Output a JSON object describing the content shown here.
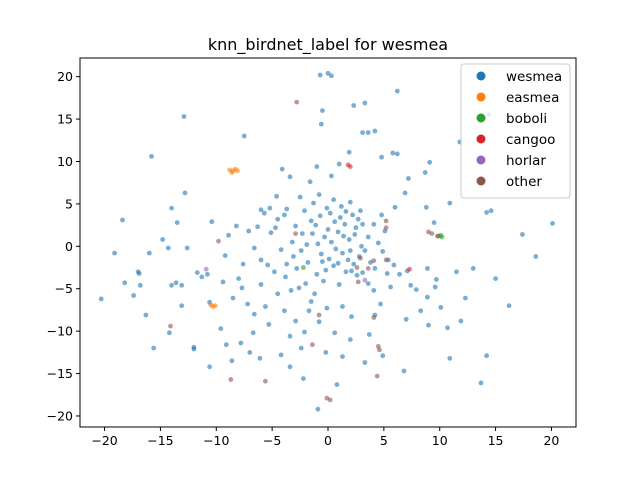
{
  "chart_data": {
    "type": "scatter",
    "title": "knn_birdnet_label for wesmea",
    "xlabel": "",
    "ylabel": "",
    "xlim": [
      -22.2,
      22.2
    ],
    "ylim": [
      -21.3,
      22.2
    ],
    "xticks": [
      -20,
      -15,
      -10,
      -5,
      0,
      5,
      10,
      15,
      20
    ],
    "yticks": [
      -20,
      -15,
      -10,
      -5,
      0,
      5,
      10,
      15,
      20
    ],
    "grid": false,
    "legend": {
      "position": "top-right"
    },
    "colors": {
      "wesmea": "#1f77b4",
      "easmea": "#ff7f0e",
      "boboli": "#2ca02c",
      "cangoo": "#d62728",
      "horlar": "#9467bd",
      "other": "#8c564b"
    },
    "series": [
      {
        "name": "wesmea",
        "points": [
          [
            0,
            20.4
          ],
          [
            -0.7,
            20.2
          ],
          [
            0.3,
            20.1
          ],
          [
            -12.9,
            15.3
          ],
          [
            14.4,
            15.5
          ],
          [
            6.2,
            18.3
          ],
          [
            2.3,
            16.6
          ],
          [
            3.3,
            16.9
          ],
          [
            -0.5,
            16
          ],
          [
            -0.6,
            14.4
          ],
          [
            3.6,
            13.4
          ],
          [
            4.2,
            13.6
          ],
          [
            5.8,
            11
          ],
          [
            4.8,
            10.5
          ],
          [
            -15.8,
            10.6
          ],
          [
            -7.5,
            13
          ],
          [
            -12.8,
            6.3
          ],
          [
            -14,
            4.5
          ],
          [
            -8.2,
            2.4
          ],
          [
            -13.5,
            2.8
          ],
          [
            -14.8,
            0.8
          ],
          [
            -19.1,
            -0.8
          ],
          [
            -18.4,
            3.1
          ],
          [
            -16,
            -0.8
          ],
          [
            -16.9,
            -3.2
          ],
          [
            -16.8,
            -4.6
          ],
          [
            -17.4,
            -5.8
          ],
          [
            -16.3,
            -8.1
          ],
          [
            -15.6,
            -12
          ],
          [
            -14,
            -4.6
          ],
          [
            -13.6,
            -4.3
          ],
          [
            -12,
            -11.9
          ],
          [
            -10.6,
            -14.2
          ],
          [
            -10.8,
            -3.3
          ],
          [
            -20.3,
            -6.2
          ],
          [
            -14.3,
            -0.2
          ],
          [
            -6,
            4.3
          ],
          [
            -5.7,
            3.9
          ],
          [
            -5.2,
            4.5
          ],
          [
            -4.5,
            3.2
          ],
          [
            -4.7,
            2.2
          ],
          [
            -3.9,
            3.7
          ],
          [
            -3.4,
            8.2
          ],
          [
            -2.5,
            5.8
          ],
          [
            -2.1,
            4.2
          ],
          [
            -1.3,
            5.1
          ],
          [
            -0.7,
            3.6
          ],
          [
            0.2,
            3.9
          ],
          [
            0.6,
            2.9
          ],
          [
            1.1,
            3.4
          ],
          [
            1.6,
            4.1
          ],
          [
            2.2,
            3.7
          ],
          [
            2.7,
            3.2
          ],
          [
            3.1,
            2.6
          ],
          [
            0.9,
            1.7
          ],
          [
            1.4,
            1.2
          ],
          [
            1.9,
            0.8
          ],
          [
            2.4,
            1.4
          ],
          [
            0.3,
            0.5
          ],
          [
            -0.3,
            1.1
          ],
          [
            -0.9,
            0.3
          ],
          [
            -1.4,
            1.5
          ],
          [
            -1.9,
            0.2
          ],
          [
            -2.4,
            -0.5
          ],
          [
            -0.6,
            -0.9
          ],
          [
            0.1,
            -1.5
          ],
          [
            0.7,
            -0.3
          ],
          [
            1.3,
            -0.8
          ],
          [
            1.8,
            -1.6
          ],
          [
            2.3,
            -2.1
          ],
          [
            2.8,
            -1.2
          ],
          [
            3.3,
            -0.5
          ],
          [
            3.8,
            -1.9
          ],
          [
            4.2,
            -2.6
          ],
          [
            0.5,
            -2.3
          ],
          [
            -0.2,
            -2.8
          ],
          [
            -1.0,
            -3.3
          ],
          [
            1.6,
            -3.0
          ],
          [
            2.1,
            -2.9
          ],
          [
            2.6,
            -3.4
          ],
          [
            3.1,
            -3.1
          ],
          [
            4.5,
            0.4
          ],
          [
            4.9,
            -0.6
          ],
          [
            5.4,
            -1.6
          ],
          [
            5.9,
            -2.2
          ],
          [
            -3.1,
            -1.2
          ],
          [
            -3.7,
            -2.1
          ],
          [
            -4.2,
            -0.4
          ],
          [
            -4.8,
            -3.0
          ],
          [
            -5.4,
            -2.2
          ],
          [
            -6.0,
            -1.6
          ],
          [
            -6.6,
            -0.2
          ],
          [
            -7.1,
            1.8
          ],
          [
            -7.6,
            -2.1
          ],
          [
            -8.0,
            -3.8
          ],
          [
            -2.0,
            -4.4
          ],
          [
            -2.6,
            -4.9
          ],
          [
            -3.3,
            -5.2
          ],
          [
            -1.2,
            -5.6
          ],
          [
            -1.7,
            -7.6
          ],
          [
            -0.8,
            -8.9
          ],
          [
            -2.1,
            -10.1
          ],
          [
            -3.4,
            -10.6
          ],
          [
            -5.3,
            -9.2
          ],
          [
            -6.6,
            -8.0
          ],
          [
            -7.2,
            -6.8
          ],
          [
            -7.8,
            -11.4
          ],
          [
            -9.6,
            -9.7
          ],
          [
            -8.5,
            -6.1
          ],
          [
            -9.2,
            -1.1
          ],
          [
            -10.4,
            2.9
          ],
          [
            -11.3,
            -3.6
          ],
          [
            -6.1,
            -13.2
          ],
          [
            -3.4,
            -14.2
          ],
          [
            -4.2,
            -12.8
          ],
          [
            -2.2,
            -15.6
          ],
          [
            -0.9,
            -19.2
          ],
          [
            0.8,
            -16.3
          ],
          [
            1.3,
            -13.0
          ],
          [
            2.0,
            -11.0
          ],
          [
            0.6,
            -10.2
          ],
          [
            -0.2,
            -12.5
          ],
          [
            3.7,
            -10.4
          ],
          [
            4.2,
            -8.1
          ],
          [
            4.7,
            -6.8
          ],
          [
            4.1,
            -5.2
          ],
          [
            5.6,
            -4.8
          ],
          [
            6.4,
            -3.3
          ],
          [
            7.1,
            -2.9
          ],
          [
            7.4,
            -4.6
          ],
          [
            7.0,
            -8.6
          ],
          [
            6.8,
            -14.7
          ],
          [
            8.3,
            -7.6
          ],
          [
            8.9,
            -6.0
          ],
          [
            9.6,
            -4.8
          ],
          [
            10.1,
            -7.2
          ],
          [
            10.7,
            -9.6
          ],
          [
            10.9,
            -13.2
          ],
          [
            11.5,
            -3.0
          ],
          [
            12.3,
            -6.1
          ],
          [
            13.0,
            -2.6
          ],
          [
            14.2,
            -12.9
          ],
          [
            13.7,
            -16.1
          ],
          [
            15.0,
            -3.8
          ],
          [
            16.2,
            -7.0
          ],
          [
            18.6,
            -1.2
          ],
          [
            20.1,
            2.7
          ],
          [
            17.4,
            1.4
          ],
          [
            14.6,
            4.2
          ],
          [
            14.2,
            4.0
          ],
          [
            11.8,
            12.3
          ],
          [
            10.9,
            5.1
          ],
          [
            9.1,
            9.9
          ],
          [
            8.7,
            8.7
          ],
          [
            7.2,
            8.0
          ],
          [
            6.9,
            6.3
          ],
          [
            6.0,
            4.6
          ],
          [
            9.5,
            2.8
          ],
          [
            8.8,
            4.6
          ],
          [
            6.2,
            10.9
          ],
          [
            3.1,
            13.4
          ],
          [
            1.9,
            11.1
          ],
          [
            1.0,
            9.7
          ],
          [
            0.3,
            8.3
          ],
          [
            -1.0,
            9.4
          ],
          [
            -1.6,
            7.6
          ],
          [
            -4.1,
            9.1
          ],
          [
            -4.6,
            5.9
          ],
          [
            -3.7,
            4.4
          ],
          [
            -6.3,
            2.3
          ],
          [
            -5.1,
            1.6
          ],
          [
            -2.9,
            2.4
          ],
          [
            -1.1,
            2.5
          ],
          [
            2.9,
            4.2
          ],
          [
            3.6,
            1.1
          ],
          [
            4.1,
            2.6
          ],
          [
            5.1,
            1.8
          ],
          [
            4.8,
            3.7
          ],
          [
            -0.4,
            -4.1
          ],
          [
            1.0,
            -4.5
          ],
          [
            3.6,
            -4.4
          ],
          [
            5.3,
            -3.2
          ],
          [
            -7.7,
            -4.9
          ],
          [
            -6.0,
            -4.5
          ],
          [
            -4.5,
            -5.6
          ],
          [
            -3.9,
            -7.6
          ],
          [
            -2.9,
            -8.8
          ],
          [
            -8.6,
            -13.5
          ],
          [
            -10.6,
            -6.6
          ],
          [
            -13.1,
            -4.6
          ],
          [
            -17.0,
            -3.0
          ],
          [
            -18.2,
            -4.3
          ],
          [
            -12.6,
            -0.2
          ],
          [
            -8.9,
            1.3
          ],
          [
            -9.4,
            -4.2
          ],
          [
            -11.7,
            -3.1
          ],
          [
            7.9,
            -5.1
          ],
          [
            8.9,
            -2.6
          ],
          [
            9.7,
            -3.9
          ],
          [
            11.9,
            -8.8
          ],
          [
            9.0,
            -9.3
          ],
          [
            4.9,
            -12.9
          ],
          [
            3.3,
            -13.7
          ],
          [
            2.1,
            -8.3
          ],
          [
            1.3,
            -7.1
          ],
          [
            -0.1,
            -7.3
          ],
          [
            -1.5,
            -6.5
          ],
          [
            -5.6,
            -7.1
          ],
          [
            -6.7,
            -10.2
          ],
          [
            -7.0,
            -12.5
          ],
          [
            -9.1,
            -11.6
          ],
          [
            -12.0,
            -12.1
          ],
          [
            -14.2,
            -10.2
          ],
          [
            -13.1,
            -7.0
          ],
          [
            -2.4,
            -12.0
          ],
          [
            -3.8,
            -3.6
          ],
          [
            -2.8,
            -2.6
          ],
          [
            -1.8,
            -1.9
          ],
          [
            -0.5,
            -1.8
          ],
          [
            0.9,
            -2.0
          ],
          [
            2.0,
            -0.5
          ],
          [
            3.0,
            0.0
          ],
          [
            2.5,
            2.2
          ],
          [
            1.5,
            2.6
          ],
          [
            0.0,
            2.0
          ],
          [
            -1.5,
            3.0
          ],
          [
            -2.3,
            1.5
          ],
          [
            -3.2,
            0.5
          ],
          [
            -0.1,
            4.5
          ],
          [
            1.2,
            4.7
          ],
          [
            2.0,
            5.2
          ],
          [
            0.5,
            5.5
          ],
          [
            -0.8,
            6.1
          ]
        ]
      },
      {
        "name": "easmea",
        "points": [
          [
            -8.8,
            9.0
          ],
          [
            -8.5,
            8.9
          ],
          [
            -8.3,
            9.1
          ],
          [
            -8.1,
            8.9
          ],
          [
            -8.6,
            8.7
          ],
          [
            -10.5,
            -6.9
          ],
          [
            -10.3,
            -7.1
          ],
          [
            -10.1,
            -7.0
          ]
        ]
      },
      {
        "name": "boboli",
        "points": [
          [
            10.1,
            1.3
          ],
          [
            9.9,
            1.2
          ],
          [
            10.2,
            1.1
          ],
          [
            -2.2,
            -2.5
          ]
        ]
      },
      {
        "name": "cangoo",
        "points": [
          [
            1.8,
            9.6
          ],
          [
            2.0,
            9.4
          ],
          [
            7.3,
            -2.7
          ]
        ]
      },
      {
        "name": "horlar",
        "points": [
          [
            3.3,
            -4.0
          ],
          [
            -10.9,
            -2.7
          ]
        ]
      },
      {
        "name": "other",
        "points": [
          [
            -2.8,
            17.0
          ],
          [
            -2.9,
            1.5
          ],
          [
            -9.8,
            0.6
          ],
          [
            -14.1,
            -9.4
          ],
          [
            -8.7,
            -15.7
          ],
          [
            -5.6,
            -15.9
          ],
          [
            -0.1,
            -17.9
          ],
          [
            0.2,
            -18.1
          ],
          [
            4.4,
            -15.3
          ],
          [
            4.6,
            -12.2
          ],
          [
            4.5,
            -11.8
          ],
          [
            2.7,
            -4.2
          ],
          [
            3.6,
            -2.6
          ],
          [
            2.6,
            -2.5
          ],
          [
            4.1,
            -1.7
          ],
          [
            2.9,
            -1.4
          ],
          [
            5.2,
            3.0
          ],
          [
            5.2,
            2.2
          ],
          [
            5.2,
            -1.6
          ],
          [
            9.0,
            1.7
          ],
          [
            9.3,
            1.5
          ],
          [
            9.8,
            1.2
          ],
          [
            -0.8,
            -8.1
          ],
          [
            4.1,
            -8.4
          ],
          [
            -1.4,
            -11.6
          ]
        ]
      }
    ]
  }
}
